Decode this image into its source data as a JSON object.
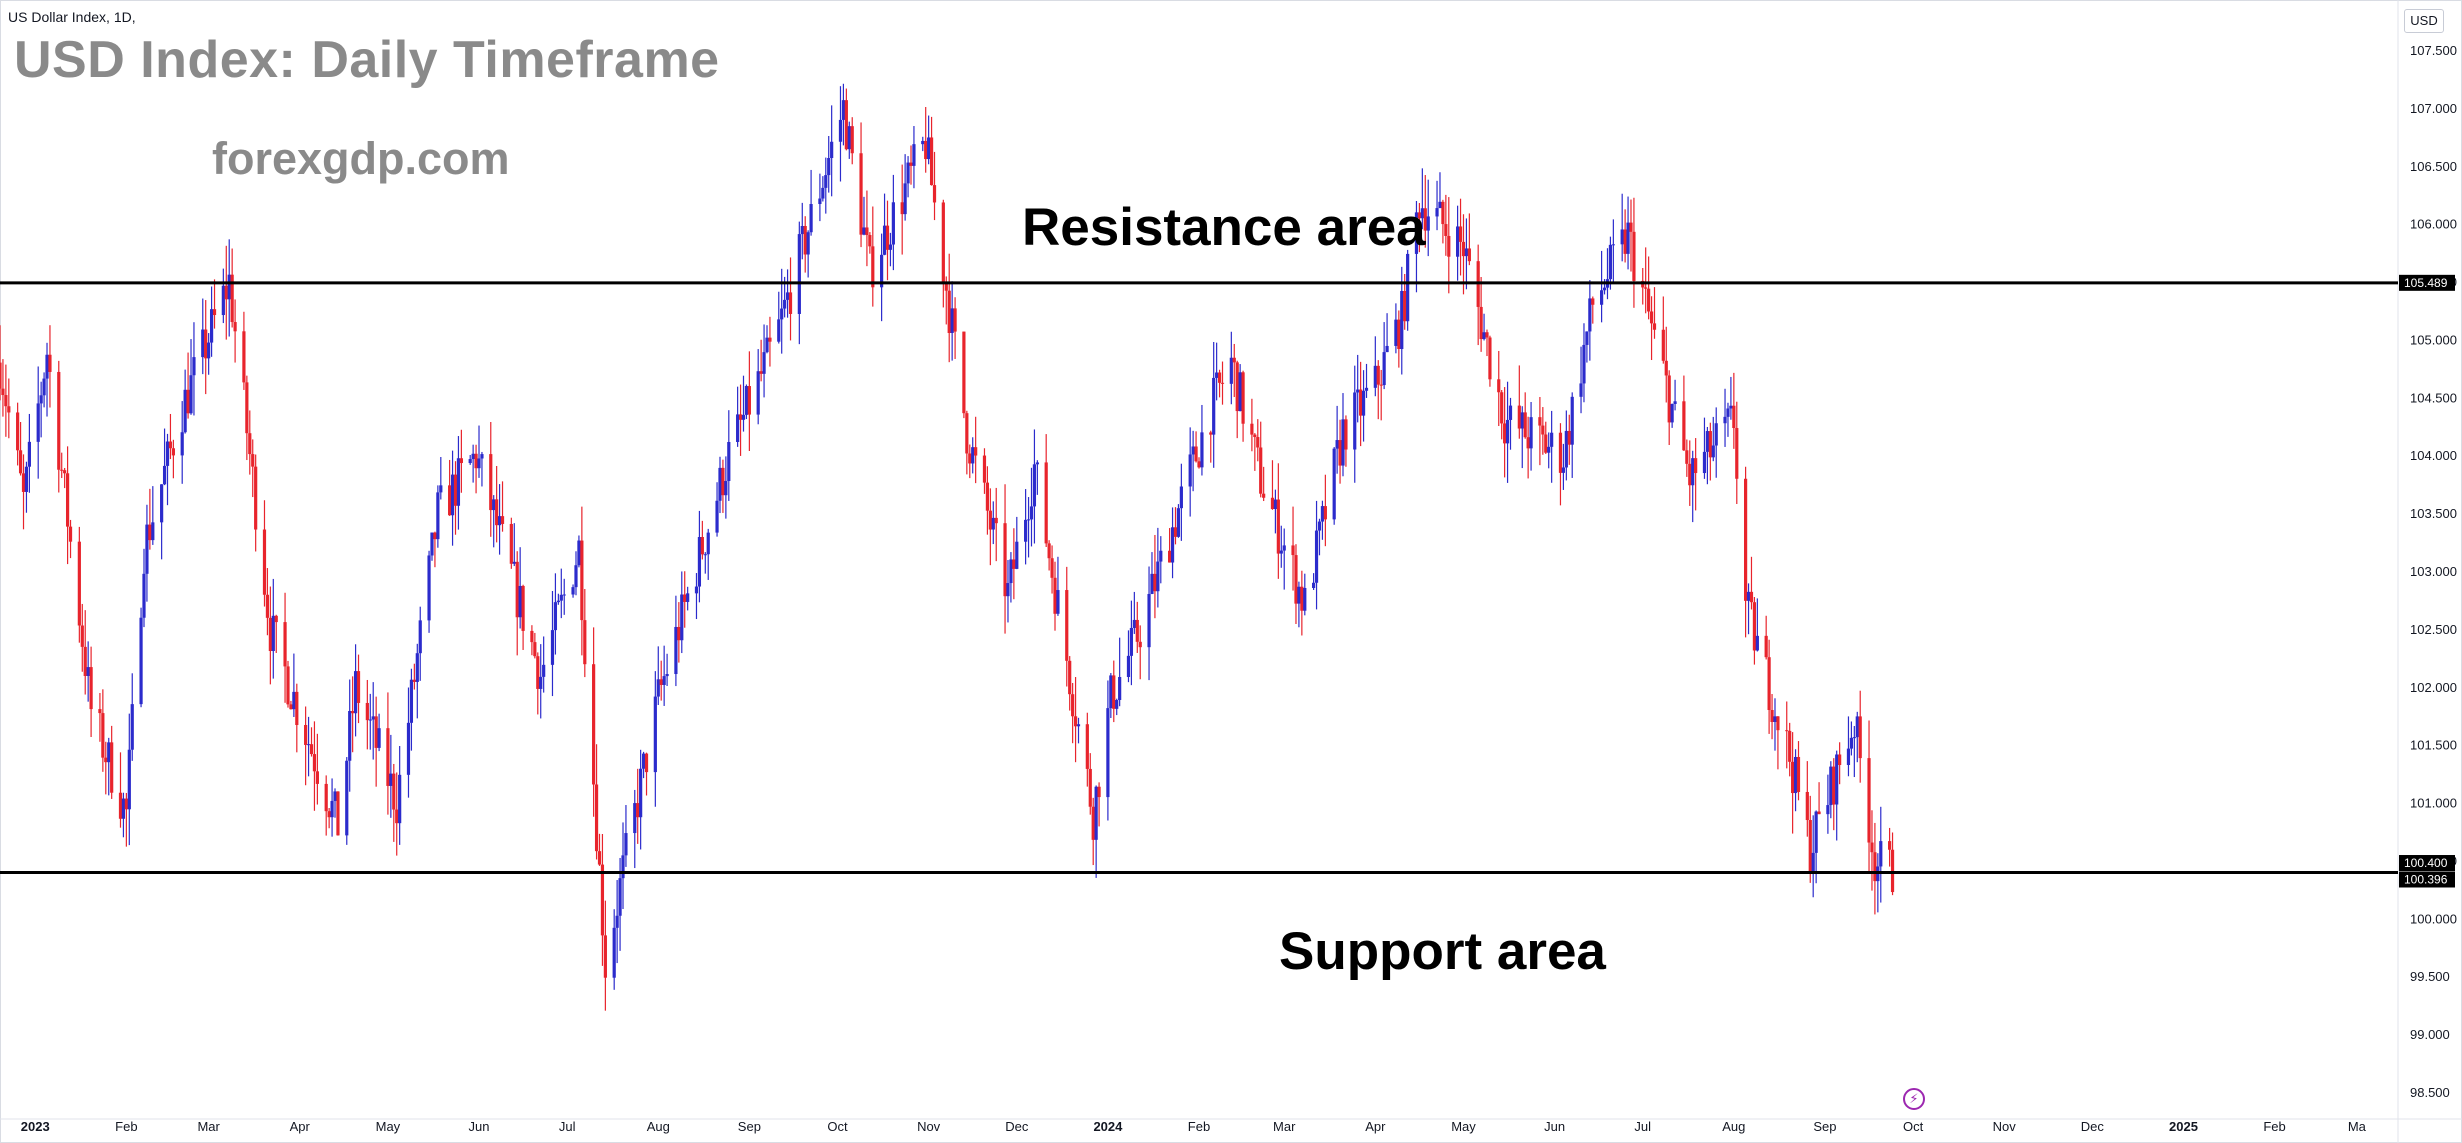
{
  "symbol_label": "US Dollar Index, 1D,",
  "currency": "USD",
  "event_icon": "lightning-event-icon",
  "colors": {
    "up": "#2b2bcc",
    "down": "#e8242c",
    "level_line": "#000000",
    "axis_text": "#131722",
    "title_gray": "#8a8a8a"
  },
  "chart_data": {
    "type": "candlestick",
    "title": "USD Index: Daily Timeframe",
    "watermark": "forexgdp.com",
    "annotations": [
      "Resistance area",
      "Support area"
    ],
    "levels": [
      {
        "name": "Resistance area",
        "value": 105.489,
        "label": "105.489"
      },
      {
        "name": "Support area",
        "value": 100.396,
        "label": "100.396"
      }
    ],
    "last_price": {
      "value": 100.4,
      "label": "100.400"
    },
    "ylim": [
      98.5,
      107.5
    ],
    "y_ticks": [
      "107.500",
      "107.000",
      "106.500",
      "106.000",
      "105.500",
      "105.000",
      "104.500",
      "104.000",
      "103.500",
      "103.000",
      "102.500",
      "102.000",
      "101.500",
      "101.000",
      "100.500",
      "100.000",
      "99.500",
      "99.000",
      "98.500"
    ],
    "x_ticks": [
      "2023",
      "Feb",
      "Mar",
      "Apr",
      "May",
      "Jun",
      "Jul",
      "Aug",
      "Sep",
      "Oct",
      "Nov",
      "Dec",
      "2024",
      "Feb",
      "Mar",
      "Apr",
      "May",
      "Jun",
      "Jul",
      "Aug",
      "Sep",
      "Oct",
      "Nov",
      "Dec",
      "2025",
      "Feb",
      "Ma"
    ],
    "xlim": [
      "2022-12-20",
      "2025-03-15"
    ],
    "ohlc_anchors": [
      [
        "2022-12-20",
        104.8
      ],
      [
        "2022-12-28",
        103.6
      ],
      [
        "2023-01-05",
        104.9
      ],
      [
        "2023-01-20",
        101.8
      ],
      [
        "2023-02-01",
        100.9
      ],
      [
        "2023-02-07",
        103.2
      ],
      [
        "2023-02-20",
        104.4
      ],
      [
        "2023-03-08",
        105.5
      ],
      [
        "2023-03-22",
        102.5
      ],
      [
        "2023-04-14",
        100.8
      ],
      [
        "2023-04-20",
        102.0
      ],
      [
        "2023-05-04",
        101.0
      ],
      [
        "2023-05-18",
        103.5
      ],
      [
        "2023-05-31",
        104.0
      ],
      [
        "2023-06-22",
        102.1
      ],
      [
        "2023-07-05",
        103.2
      ],
      [
        "2023-07-14",
        99.6
      ],
      [
        "2023-07-20",
        100.4
      ],
      [
        "2023-08-01",
        101.9
      ],
      [
        "2023-08-25",
        104.0
      ],
      [
        "2023-09-10",
        105.0
      ],
      [
        "2023-10-03",
        107.0
      ],
      [
        "2023-10-12",
        105.6
      ],
      [
        "2023-10-31",
        106.7
      ],
      [
        "2023-11-14",
        104.2
      ],
      [
        "2023-11-28",
        102.8
      ],
      [
        "2023-12-07",
        103.9
      ],
      [
        "2023-12-27",
        100.9
      ],
      [
        "2024-01-02",
        101.9
      ],
      [
        "2024-01-12",
        102.5
      ],
      [
        "2024-02-05",
        104.4
      ],
      [
        "2024-02-12",
        104.8
      ],
      [
        "2024-02-22",
        103.8
      ],
      [
        "2024-03-08",
        102.7
      ],
      [
        "2024-03-21",
        104.2
      ],
      [
        "2024-04-01",
        104.6
      ],
      [
        "2024-04-10",
        105.2
      ],
      [
        "2024-04-16",
        106.2
      ],
      [
        "2024-05-01",
        105.8
      ],
      [
        "2024-05-15",
        104.3
      ],
      [
        "2024-06-04",
        104.0
      ],
      [
        "2024-06-14",
        105.3
      ],
      [
        "2024-06-26",
        105.9
      ],
      [
        "2024-07-05",
        105.0
      ],
      [
        "2024-07-17",
        103.8
      ],
      [
        "2024-08-01",
        104.3
      ],
      [
        "2024-08-05",
        102.7
      ],
      [
        "2024-08-20",
        101.4
      ],
      [
        "2024-08-27",
        100.6
      ],
      [
        "2024-09-04",
        101.2
      ],
      [
        "2024-09-11",
        101.7
      ],
      [
        "2024-09-18",
        100.5
      ],
      [
        "2024-09-24",
        100.4
      ]
    ]
  }
}
